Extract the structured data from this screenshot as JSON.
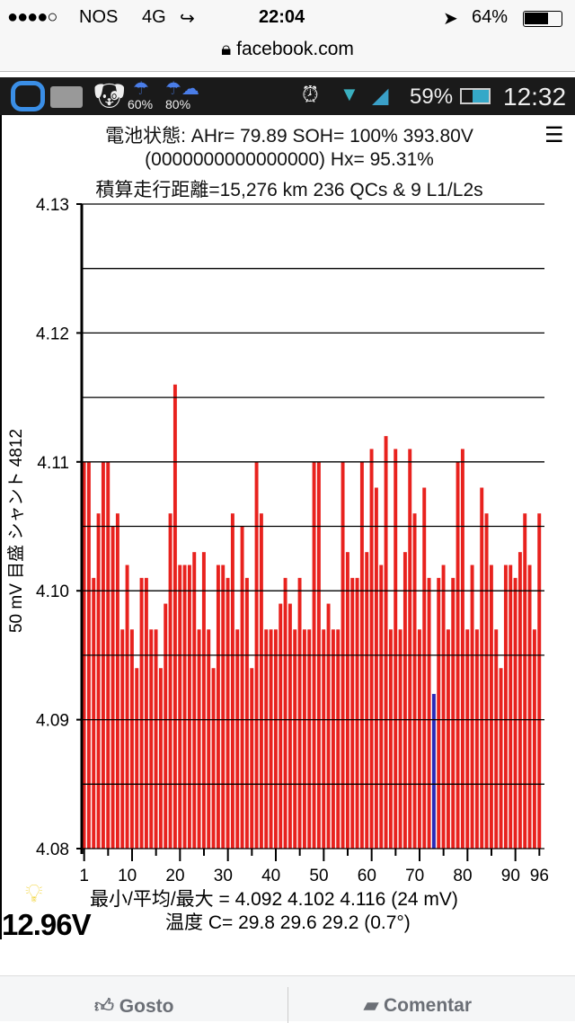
{
  "ios_status": {
    "signal": "●●●●○",
    "carrier": "NOS",
    "network": "4G",
    "time": "22:04",
    "battery": "64%"
  },
  "browser": {
    "url": "facebook.com"
  },
  "android_status": {
    "weather1": "60%",
    "weather2": "80%",
    "battery": "59%",
    "time": "12:32"
  },
  "app": {
    "line1": "電池状態: AHr= 79.89 SOH= 100% 393.80V",
    "line2": "(0000000000000000)    Hx= 95.31%",
    "line3": "積算走行距離=15,276 km  236 QCs  &  9 L1/L2s",
    "stats": "最小/平均/最大 = 4.092 4.102 4.116  (24 mV)",
    "temps": "温度 C= 29.8  29.6  29.2  (0.7°)",
    "aux_voltage": "12.96V"
  },
  "chart_data": {
    "type": "bar",
    "ylabel": "50 mV 目盛  シャント 4812",
    "ylim": [
      4.08,
      4.13
    ],
    "yticks": [
      "4.08",
      "4.09",
      "4.10",
      "4.11",
      "4.12",
      "4.13"
    ],
    "grid": true,
    "xticks": [
      "1",
      "10",
      "20",
      "30",
      "40",
      "50",
      "60",
      "70",
      "80",
      "90",
      "96"
    ],
    "bar_color": "#e8221e",
    "highlight_color": "#2a2ab8",
    "highlight_index": 74,
    "x": [
      1,
      2,
      3,
      4,
      5,
      6,
      7,
      8,
      9,
      10,
      11,
      12,
      13,
      14,
      15,
      16,
      17,
      18,
      19,
      20,
      21,
      22,
      23,
      24,
      25,
      26,
      27,
      28,
      29,
      30,
      31,
      32,
      33,
      34,
      35,
      36,
      37,
      38,
      39,
      40,
      41,
      42,
      43,
      44,
      45,
      46,
      47,
      48,
      49,
      50,
      51,
      52,
      53,
      54,
      55,
      56,
      57,
      58,
      59,
      60,
      61,
      62,
      63,
      64,
      65,
      66,
      67,
      68,
      69,
      70,
      71,
      72,
      73,
      74,
      75,
      76,
      77,
      78,
      79,
      80,
      81,
      82,
      83,
      84,
      85,
      86,
      87,
      88,
      89,
      90,
      91,
      92,
      93,
      94,
      95,
      96
    ],
    "values": [
      4.11,
      4.11,
      4.101,
      4.106,
      4.11,
      4.11,
      4.105,
      4.106,
      4.097,
      4.102,
      4.097,
      4.094,
      4.101,
      4.101,
      4.097,
      4.097,
      4.094,
      4.099,
      4.106,
      4.116,
      4.102,
      4.102,
      4.102,
      4.103,
      4.097,
      4.103,
      4.097,
      4.094,
      4.102,
      4.102,
      4.101,
      4.106,
      4.097,
      4.105,
      4.101,
      4.094,
      4.11,
      4.106,
      4.097,
      4.097,
      4.097,
      4.099,
      4.101,
      4.099,
      4.097,
      4.101,
      4.097,
      4.097,
      4.11,
      4.11,
      4.097,
      4.099,
      4.097,
      4.097,
      4.11,
      4.103,
      4.101,
      4.101,
      4.11,
      4.103,
      4.111,
      4.108,
      4.102,
      4.112,
      4.097,
      4.111,
      4.097,
      4.103,
      4.111,
      4.106,
      4.097,
      4.108,
      4.101,
      4.092,
      4.101,
      4.102,
      4.097,
      4.101,
      4.11,
      4.111,
      4.097,
      4.102,
      4.097,
      4.108,
      4.106,
      4.102,
      4.097,
      4.094,
      4.102,
      4.102,
      4.101,
      4.103,
      4.106,
      4.102,
      4.097,
      4.106
    ]
  },
  "facebook": {
    "like": "Gosto",
    "comment": "Comentar"
  }
}
